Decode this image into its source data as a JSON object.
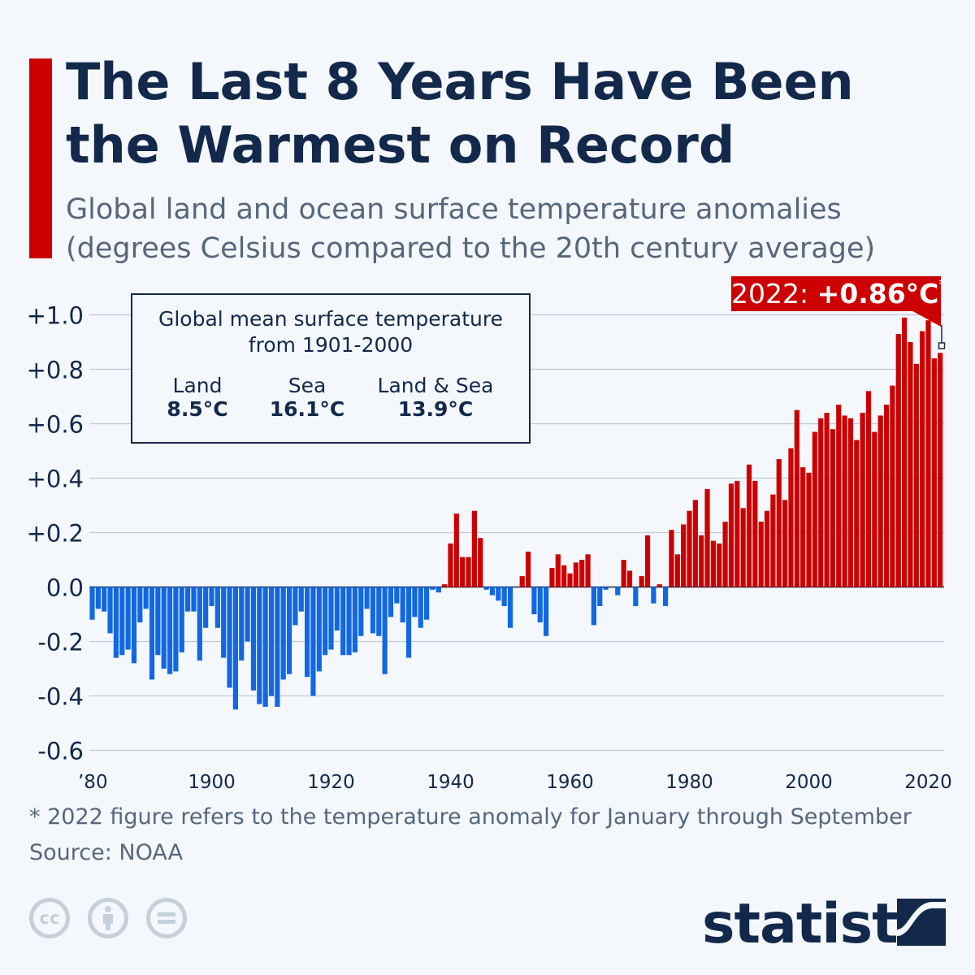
{
  "header": {
    "title_line1": "The Last 8 Years Have Been",
    "title_line2": "the Warmest on Record",
    "subtitle_line1": "Global land and ocean surface temperature anomalies",
    "subtitle_line2": "(degrees Celsius compared to the 20th century average)"
  },
  "legend": {
    "heading_line1": "Global mean surface temperature",
    "heading_line2": "from 1901-2000",
    "items": [
      {
        "label": "Land",
        "value": "8.5°C"
      },
      {
        "label": "Sea",
        "value": "16.1°C"
      },
      {
        "label": "Land & Sea",
        "value": "13.9°C"
      }
    ]
  },
  "callout": {
    "year": "2022:",
    "value": "+0.86°C",
    "mark": "*"
  },
  "footer": {
    "footnote": "* 2022 figure refers to the temperature anomaly for January through September",
    "source": "Source: NOAA",
    "license_icons": [
      "cc-icon",
      "attribution-icon",
      "no-derivatives-icon"
    ],
    "logo": "statista"
  },
  "colors": {
    "positive": "#cc0000",
    "negative": "#1268e0",
    "title": "#13294b",
    "accent": "#cc0000"
  },
  "chart_data": {
    "type": "bar",
    "title": "The Last 8 Years Have Been the Warmest on Record",
    "x_start": 1880,
    "x_end": 2022,
    "ylim": [
      -0.6,
      1.0
    ],
    "grid": true,
    "y_ticks": [
      "+1.0",
      "+0.8",
      "+0.6",
      "+0.4",
      "+0.2",
      "0.0",
      "-0.2",
      "-0.4",
      "-0.6"
    ],
    "y_tick_values": [
      1.0,
      0.8,
      0.6,
      0.4,
      0.2,
      0.0,
      -0.2,
      -0.4,
      -0.6
    ],
    "x_ticks": [
      "’80",
      "1900",
      "1920",
      "1940",
      "1960",
      "1980",
      "2000",
      "2020"
    ],
    "x_tick_years": [
      1880,
      1900,
      1920,
      1940,
      1960,
      1980,
      2000,
      2020
    ],
    "values": [
      -0.12,
      -0.08,
      -0.09,
      -0.17,
      -0.26,
      -0.25,
      -0.23,
      -0.28,
      -0.13,
      -0.08,
      -0.34,
      -0.25,
      -0.3,
      -0.32,
      -0.31,
      -0.24,
      -0.09,
      -0.09,
      -0.27,
      -0.15,
      -0.07,
      -0.15,
      -0.26,
      -0.37,
      -0.45,
      -0.27,
      -0.2,
      -0.38,
      -0.43,
      -0.44,
      -0.4,
      -0.44,
      -0.34,
      -0.32,
      -0.14,
      -0.09,
      -0.33,
      -0.4,
      -0.31,
      -0.25,
      -0.23,
      -0.16,
      -0.25,
      -0.25,
      -0.24,
      -0.18,
      -0.08,
      -0.17,
      -0.18,
      -0.32,
      -0.11,
      -0.06,
      -0.13,
      -0.26,
      -0.11,
      -0.15,
      -0.12,
      -0.01,
      -0.02,
      0.01,
      0.16,
      0.27,
      0.11,
      0.11,
      0.28,
      0.18,
      -0.01,
      -0.03,
      -0.05,
      -0.07,
      -0.15,
      0.0,
      0.04,
      0.13,
      -0.1,
      -0.13,
      -0.18,
      0.07,
      0.12,
      0.08,
      0.05,
      0.09,
      0.1,
      0.12,
      -0.14,
      -0.07,
      -0.01,
      0.0,
      -0.03,
      0.1,
      0.06,
      -0.07,
      0.04,
      0.19,
      -0.06,
      0.01,
      -0.07,
      0.21,
      0.12,
      0.23,
      0.28,
      0.32,
      0.19,
      0.36,
      0.17,
      0.16,
      0.24,
      0.38,
      0.39,
      0.29,
      0.45,
      0.39,
      0.24,
      0.28,
      0.34,
      0.47,
      0.32,
      0.51,
      0.65,
      0.44,
      0.42,
      0.57,
      0.62,
      0.64,
      0.58,
      0.67,
      0.63,
      0.62,
      0.54,
      0.64,
      0.72,
      0.57,
      0.63,
      0.67,
      0.74,
      0.93,
      0.99,
      0.9,
      0.82,
      0.94,
      0.98,
      0.84,
      0.86
    ]
  }
}
